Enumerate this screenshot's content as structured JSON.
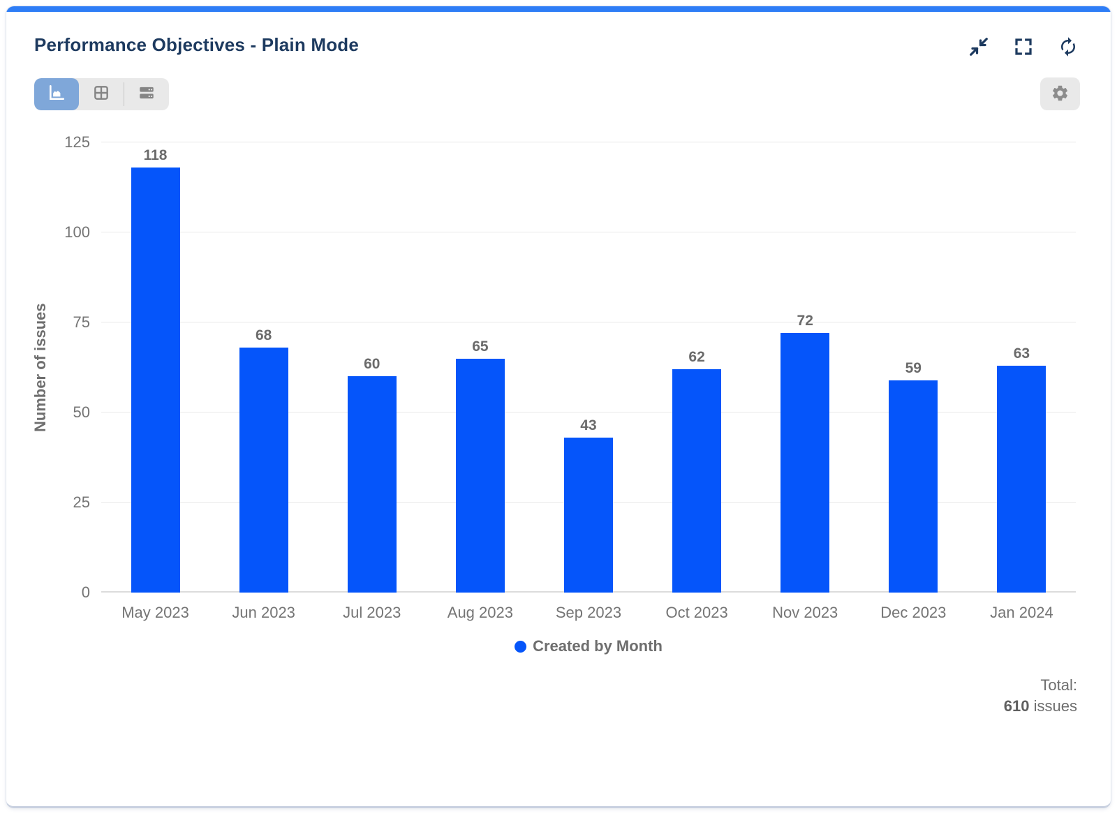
{
  "header": {
    "title": "Performance Objectives - Plain Mode"
  },
  "toolbar": {
    "collapse": "collapse",
    "fullscreen": "fullscreen",
    "refresh": "refresh"
  },
  "view_toggle": {
    "options": [
      {
        "id": "chart-view",
        "selected": true
      },
      {
        "id": "table-view",
        "selected": false
      },
      {
        "id": "rows-view",
        "selected": false
      }
    ]
  },
  "chart_data": {
    "type": "bar",
    "title": "",
    "categories": [
      "May 2023",
      "Jun 2023",
      "Jul 2023",
      "Aug 2023",
      "Sep 2023",
      "Oct 2023",
      "Nov 2023",
      "Dec 2023",
      "Jan 2024"
    ],
    "values": [
      118,
      68,
      60,
      65,
      43,
      62,
      72,
      59,
      63
    ],
    "series_name": "Created by Month",
    "xlabel": "",
    "ylabel": "Number of issues",
    "ylim": [
      0,
      125
    ],
    "y_ticks": [
      0,
      25,
      50,
      75,
      100,
      125
    ],
    "grid": true,
    "legend_position": "bottom",
    "bar_color": "#0555fa"
  },
  "summary": {
    "total_label": "Total:",
    "total_value": "610",
    "total_unit": " issues"
  },
  "colors": {
    "accent_bar": "#2e7df6",
    "title_navy": "#1d3a5f",
    "legend_dot": "#0555fa"
  }
}
